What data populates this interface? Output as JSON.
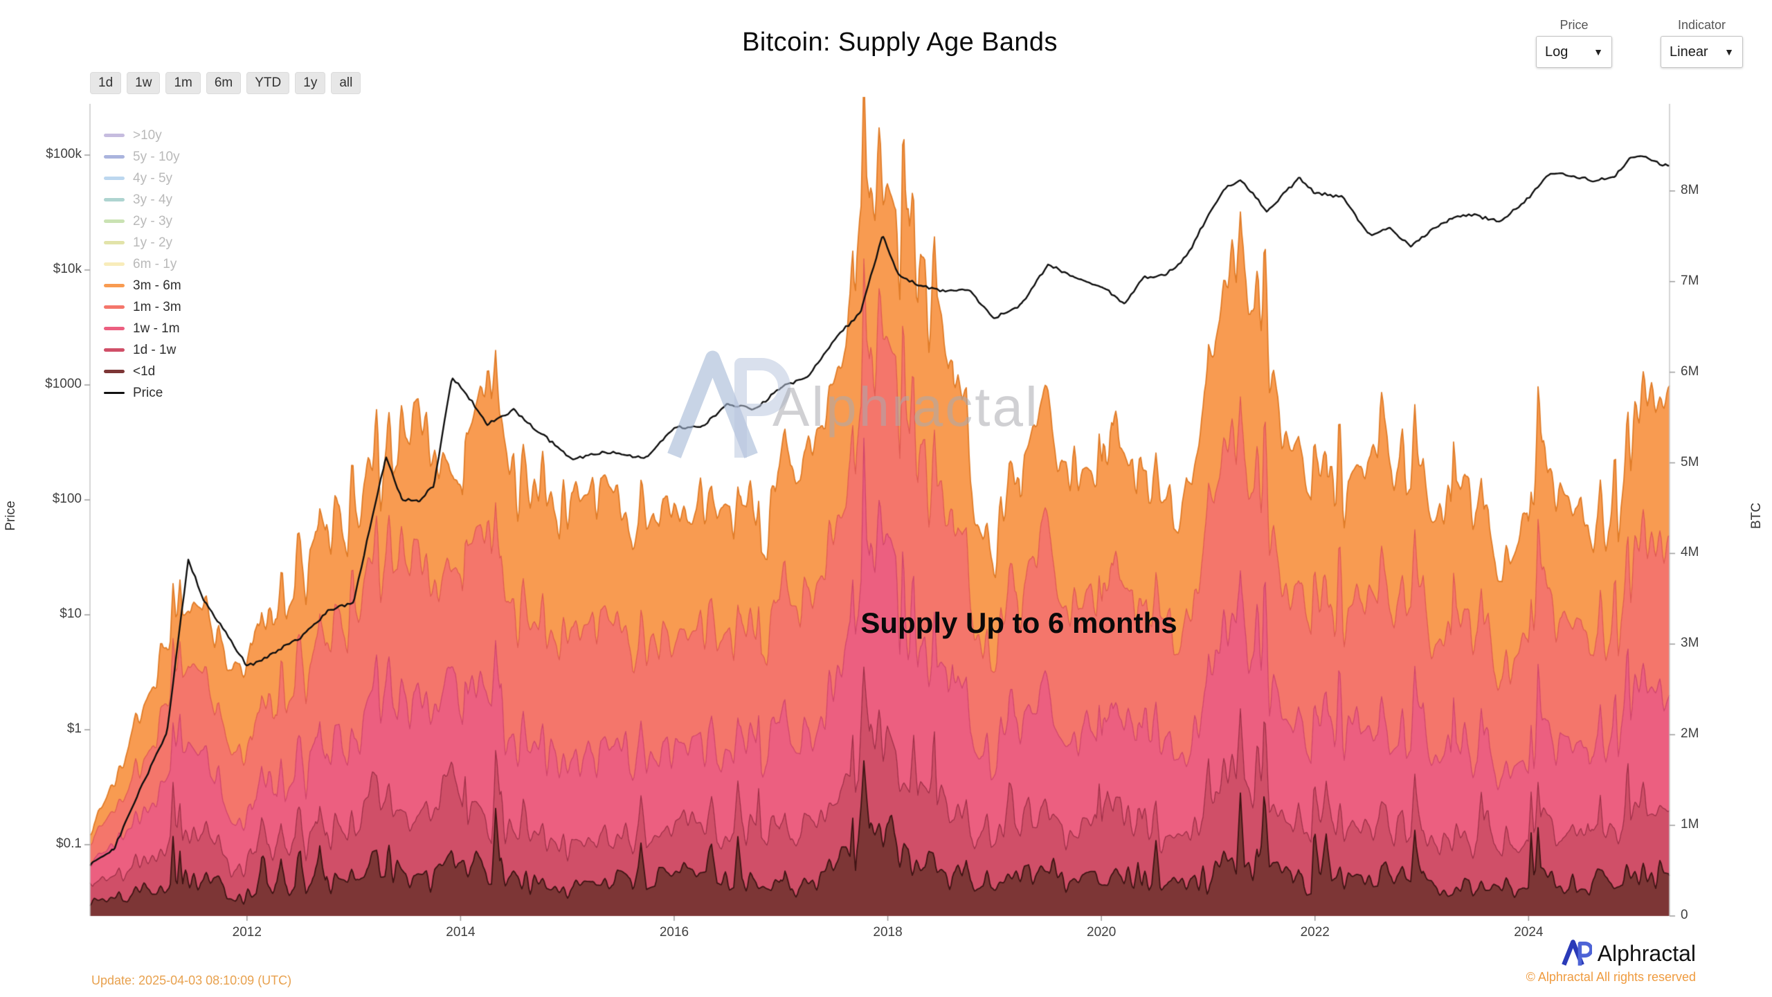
{
  "header": {
    "price_control": {
      "label": "Price",
      "value": "Log"
    },
    "indicator_control": {
      "label": "Indicator",
      "value": "Linear"
    }
  },
  "toolbar": {
    "ranges": [
      "1d",
      "1w",
      "1m",
      "6m",
      "YTD",
      "1y",
      "all"
    ]
  },
  "watermark": {
    "text": "Alphractal"
  },
  "footer": {
    "update": "Update: 2025-04-03 08:10:09 (UTC)",
    "brand": "Alphractal",
    "copyright": "© Alphractal All rights reserved"
  },
  "chart_data": {
    "type": "area",
    "stacked": true,
    "title": "Bitcoin: Supply Age Bands",
    "annotation": "Supply Up to 6 months",
    "left_axis_label": "Price",
    "right_axis_label": "BTC",
    "price_scale": "log",
    "x_domain": [
      2010.53,
      2025.32
    ],
    "x_ticks": [
      2012,
      2014,
      2016,
      2018,
      2020,
      2022,
      2024
    ],
    "price_ticks": [
      {
        "label": "$100k",
        "value": 100000
      },
      {
        "label": "$10k",
        "value": 10000
      },
      {
        "label": "$1000",
        "value": 1000
      },
      {
        "label": "$100",
        "value": 100
      },
      {
        "label": "$10",
        "value": 10
      },
      {
        "label": "$1",
        "value": 1
      },
      {
        "label": "$0.1",
        "value": 0.1
      }
    ],
    "btc_ticks": [
      {
        "label": "8M",
        "value": 8
      },
      {
        "label": "7M",
        "value": 7
      },
      {
        "label": "6M",
        "value": 6
      },
      {
        "label": "5M",
        "value": 5
      },
      {
        "label": "4M",
        "value": 4
      },
      {
        "label": "3M",
        "value": 3
      },
      {
        "label": "2M",
        "value": 2
      },
      {
        "label": "1M",
        "value": 1
      },
      {
        "label": "0",
        "value": 0
      }
    ],
    "legend_items": [
      {
        "label": ">10y",
        "color": "#b3a6d4",
        "active": false
      },
      {
        "label": "5y - 10y",
        "color": "#8d9bd3",
        "active": false
      },
      {
        "label": "4y - 5y",
        "color": "#a6c9ea",
        "active": false
      },
      {
        "label": "3y - 4y",
        "color": "#93c6c0",
        "active": false
      },
      {
        "label": "2y - 3y",
        "color": "#b8d89a",
        "active": false
      },
      {
        "label": "1y - 2y",
        "color": "#d8d98c",
        "active": false
      },
      {
        "label": "6m - 1y",
        "color": "#f5e6a3",
        "active": false
      },
      {
        "label": "3m - 6m",
        "color": "#f89b51",
        "active": true
      },
      {
        "label": "1m - 3m",
        "color": "#f4766b",
        "active": true
      },
      {
        "label": "1w - 1m",
        "color": "#ec5f80",
        "active": true
      },
      {
        "label": "1d - 1w",
        "color": "#d04f68",
        "active": true
      },
      {
        "label": "<1d",
        "color": "#7d3636",
        "active": true
      },
      {
        "label": "Price",
        "color": "#111111",
        "active": true,
        "line": true
      }
    ],
    "x": [
      2010.5,
      2010.75,
      2011.0,
      2011.25,
      2011.45,
      2011.6,
      2011.75,
      2012.0,
      2012.25,
      2012.5,
      2012.75,
      2013.0,
      2013.3,
      2013.45,
      2013.6,
      2013.75,
      2013.92,
      2014.05,
      2014.25,
      2014.5,
      2014.75,
      2015.05,
      2015.25,
      2015.5,
      2015.75,
      2016.0,
      2016.25,
      2016.5,
      2016.75,
      2017.0,
      2017.25,
      2017.5,
      2017.75,
      2017.95,
      2018.1,
      2018.25,
      2018.5,
      2018.75,
      2019.0,
      2019.25,
      2019.5,
      2019.75,
      2020.0,
      2020.21,
      2020.4,
      2020.6,
      2020.8,
      2021.0,
      2021.15,
      2021.3,
      2021.55,
      2021.7,
      2021.85,
      2022.0,
      2022.25,
      2022.5,
      2022.7,
      2022.9,
      2023.1,
      2023.3,
      2023.5,
      2023.75,
      2024.0,
      2024.2,
      2024.4,
      2024.6,
      2024.8,
      2024.95,
      2025.05,
      2025.15,
      2025.27
    ],
    "price": [
      0.065,
      0.09,
      0.3,
      0.9,
      30,
      13,
      8,
      3.5,
      4.9,
      6.5,
      11,
      13.5,
      230,
      100,
      95,
      130,
      1150,
      830,
      450,
      620,
      380,
      215,
      245,
      260,
      235,
      430,
      415,
      670,
      610,
      990,
      1180,
      2500,
      4300,
      19200,
      9000,
      8000,
      6400,
      6500,
      3650,
      5200,
      11200,
      8300,
      7200,
      5300,
      9000,
      9200,
      13000,
      29000,
      49000,
      59000,
      33000,
      47000,
      64000,
      47000,
      42000,
      20000,
      23000,
      16000,
      22000,
      28000,
      30000,
      27500,
      43500,
      68000,
      64000,
      61000,
      67000,
      97000,
      103000,
      92000,
      83000
    ],
    "bands": [
      {
        "name": "<1d",
        "color": "#7d3636",
        "edge": "#3f1414",
        "values": [
          0.15,
          0.2,
          0.25,
          0.3,
          0.45,
          0.35,
          0.3,
          0.3,
          0.3,
          0.35,
          0.4,
          0.4,
          0.8,
          0.55,
          0.5,
          0.45,
          0.75,
          0.55,
          0.5,
          0.4,
          0.38,
          0.38,
          0.42,
          0.36,
          0.38,
          0.36,
          0.42,
          0.4,
          0.37,
          0.4,
          0.42,
          0.5,
          0.62,
          0.95,
          0.7,
          0.6,
          0.5,
          0.42,
          0.36,
          0.42,
          0.55,
          0.42,
          0.42,
          0.55,
          0.42,
          0.38,
          0.38,
          0.52,
          0.6,
          0.62,
          0.5,
          0.44,
          0.42,
          0.38,
          0.4,
          0.48,
          0.42,
          0.42,
          0.4,
          0.44,
          0.38,
          0.33,
          0.38,
          0.48,
          0.4,
          0.36,
          0.38,
          0.46,
          0.48,
          0.48,
          0.5
        ]
      },
      {
        "name": "1d - 1w",
        "color": "#d04f68",
        "edge": "#9e2f47",
        "values": [
          0.15,
          0.25,
          0.3,
          0.4,
          0.55,
          0.45,
          0.35,
          0.35,
          0.4,
          0.45,
          0.5,
          0.55,
          0.8,
          0.75,
          0.65,
          0.6,
          0.85,
          0.75,
          0.7,
          0.55,
          0.5,
          0.5,
          0.55,
          0.48,
          0.5,
          0.48,
          0.56,
          0.5,
          0.48,
          0.55,
          0.58,
          0.68,
          0.85,
          1.25,
          1.0,
          0.85,
          0.7,
          0.58,
          0.5,
          0.56,
          0.72,
          0.56,
          0.55,
          0.68,
          0.55,
          0.5,
          0.5,
          0.68,
          0.82,
          0.88,
          0.7,
          0.6,
          0.56,
          0.5,
          0.53,
          0.62,
          0.55,
          0.54,
          0.52,
          0.57,
          0.5,
          0.44,
          0.5,
          0.62,
          0.53,
          0.48,
          0.5,
          0.6,
          0.64,
          0.66,
          0.68
        ]
      },
      {
        "name": "1w - 1m",
        "color": "#ec5f80",
        "edge": "#d1456b",
        "values": [
          0.2,
          0.35,
          0.5,
          0.7,
          0.9,
          0.8,
          0.6,
          0.55,
          0.6,
          0.75,
          0.9,
          0.95,
          1.3,
          1.3,
          1.15,
          1.0,
          1.2,
          1.3,
          1.3,
          1.0,
          0.92,
          0.9,
          1.0,
          0.86,
          0.92,
          0.86,
          1.0,
          0.95,
          0.9,
          1.0,
          1.05,
          1.25,
          1.55,
          2.2,
          1.9,
          1.6,
          1.3,
          1.05,
          0.88,
          1.0,
          1.3,
          1.0,
          1.0,
          1.2,
          1.0,
          0.94,
          0.92,
          1.25,
          1.5,
          1.6,
          1.3,
          1.12,
          1.05,
          0.95,
          1.0,
          1.15,
          1.03,
          1.0,
          0.98,
          1.05,
          0.94,
          0.82,
          0.94,
          1.14,
          1.0,
          0.9,
          0.94,
          1.06,
          1.14,
          1.2,
          1.26
        ]
      },
      {
        "name": "1m - 3m",
        "color": "#f4766b",
        "edge": "#e05a52",
        "values": [
          0.2,
          0.4,
          0.6,
          0.8,
          0.85,
          0.95,
          0.8,
          0.75,
          0.85,
          1.0,
          1.2,
          1.25,
          1.4,
          1.65,
          1.7,
          1.35,
          1.2,
          1.6,
          1.9,
          1.5,
          1.3,
          1.22,
          1.33,
          1.2,
          1.25,
          1.2,
          1.4,
          1.3,
          1.25,
          1.35,
          1.45,
          1.7,
          2.05,
          2.3,
          2.4,
          2.15,
          1.8,
          1.4,
          1.16,
          1.32,
          1.68,
          1.42,
          1.38,
          1.45,
          1.38,
          1.3,
          1.26,
          1.65,
          1.92,
          2.1,
          1.85,
          1.56,
          1.42,
          1.3,
          1.36,
          1.52,
          1.42,
          1.36,
          1.33,
          1.42,
          1.28,
          1.14,
          1.28,
          1.48,
          1.35,
          1.22,
          1.28,
          1.38,
          1.5,
          1.6,
          1.7
        ]
      },
      {
        "name": "3m - 6m",
        "color": "#f89b51",
        "edge": "#e07c28",
        "values": [
          0.1,
          0.3,
          0.55,
          0.7,
          0.65,
          0.75,
          0.85,
          0.95,
          0.95,
          1.05,
          1.2,
          1.25,
          1.0,
          1.25,
          1.6,
          1.5,
          1.0,
          1.2,
          1.8,
          1.55,
          1.5,
          1.4,
          1.5,
          1.3,
          1.35,
          1.3,
          1.42,
          1.35,
          1.3,
          1.4,
          1.5,
          1.67,
          1.93,
          1.7,
          1.8,
          2.0,
          1.9,
          1.45,
          1.2,
          1.3,
          1.45,
          1.5,
          1.45,
          1.42,
          1.45,
          1.38,
          1.34,
          1.5,
          1.76,
          2.0,
          1.95,
          1.68,
          1.45,
          1.37,
          1.41,
          1.53,
          1.48,
          1.38,
          1.37,
          1.42,
          1.3,
          1.17,
          1.3,
          1.38,
          1.32,
          1.24,
          1.3,
          1.3,
          1.44,
          1.56,
          1.66
        ]
      }
    ]
  }
}
